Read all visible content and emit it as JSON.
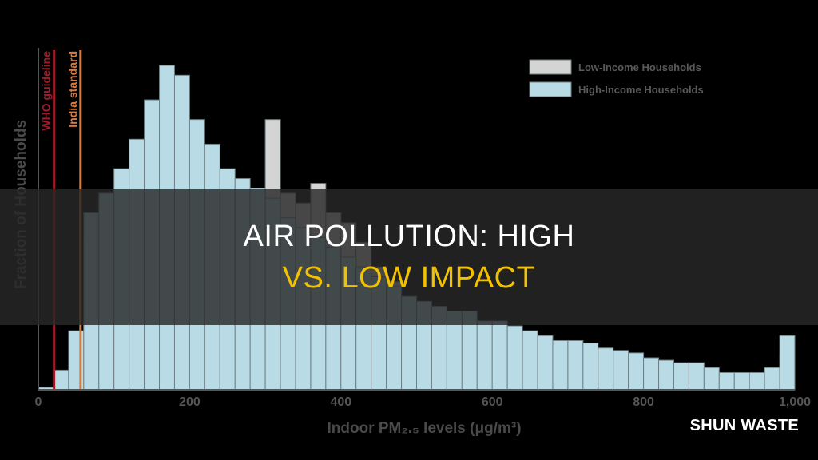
{
  "chart_data": {
    "type": "bar",
    "xlabel": "Indoor PM₂.₅ levels (μg/m³)",
    "ylabel": "Fraction of Households",
    "xlim": [
      0,
      1000
    ],
    "xticks": [
      "0",
      "200",
      "400",
      "600",
      "800",
      "1,000"
    ],
    "bin_width": 20,
    "legend_position": "top-right",
    "series": [
      {
        "name": "Low-Income Households",
        "color": "#d4d4d4",
        "values": [
          0.005,
          0.015,
          0.03,
          0.3,
          0.34,
          0.37,
          0.41,
          0.44,
          0.46,
          0.45,
          0.43,
          0.41,
          0.37,
          0.34,
          0.3,
          0.55,
          0.4,
          0.38,
          0.42,
          0.36,
          0.34,
          0.3,
          0.25,
          0.22,
          0.14,
          0.12,
          0.11,
          0.11,
          0.11,
          0.1,
          0.09,
          0.085,
          0.08,
          0.075,
          0.07,
          0.065,
          0.06,
          0.055,
          0.05,
          0.05,
          0.045,
          0.045,
          0.04,
          0.035,
          0.03,
          0.025,
          0.025,
          0.02,
          0.02,
          0.07
        ]
      },
      {
        "name": "High-Income Households",
        "color": "#b9dbe5",
        "values": [
          0.005,
          0.04,
          0.12,
          0.36,
          0.4,
          0.45,
          0.51,
          0.59,
          0.66,
          0.64,
          0.55,
          0.5,
          0.45,
          0.43,
          0.41,
          0.39,
          0.35,
          0.33,
          0.31,
          0.29,
          0.27,
          0.25,
          0.23,
          0.21,
          0.19,
          0.18,
          0.17,
          0.16,
          0.16,
          0.14,
          0.14,
          0.13,
          0.12,
          0.11,
          0.1,
          0.1,
          0.095,
          0.085,
          0.08,
          0.075,
          0.065,
          0.06,
          0.055,
          0.055,
          0.045,
          0.035,
          0.035,
          0.035,
          0.045,
          0.11
        ]
      }
    ],
    "reference_lines": [
      {
        "label": "WHO guideline",
        "x": 25,
        "color": "#a01c2a"
      },
      {
        "label": "India standard",
        "x": 60,
        "color": "#e07a38"
      }
    ]
  },
  "headline": {
    "line1": "Air Pollution: High",
    "line2": "vs. Low Impact"
  },
  "brand": "SHUN WASTE"
}
